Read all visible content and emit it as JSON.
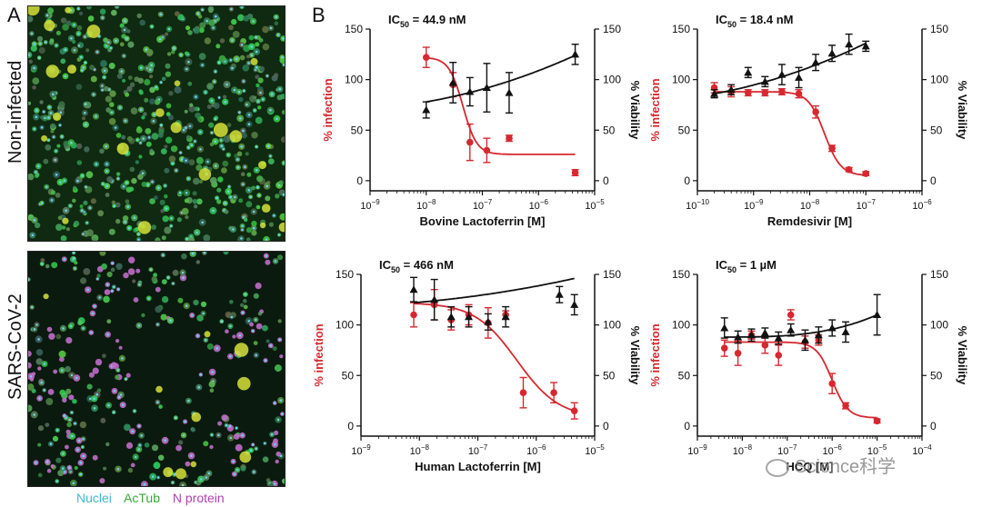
{
  "panels": {
    "a_label": "A",
    "b_label": "B"
  },
  "rows": [
    {
      "label": "Non-infected",
      "style": "noninfected"
    },
    {
      "label": "SARS-CoV-2",
      "style": "infected"
    }
  ],
  "stain_legend": [
    {
      "text": "Nuclei",
      "color": "#3fb8d6"
    },
    {
      "text": "AcTub",
      "color": "#3aa83a"
    },
    {
      "text": "N protein",
      "color": "#b040b0"
    }
  ],
  "watermark": "Science科学",
  "colors": {
    "infection": "#d7282f",
    "viability": "#111111"
  },
  "chart_data": [
    {
      "type": "scatter",
      "title": "IC50 = 44.9 nM",
      "xlabel": "Bovine Lactoferrin [M]",
      "ylabel_left": "% infection",
      "ylabel_right": "% Viability",
      "xlim_exp": [
        -9,
        -5
      ],
      "xtick_exps": [
        -9,
        -8,
        -7,
        -6,
        -5
      ],
      "ylim": [
        -10,
        150
      ],
      "yticks": [
        0,
        50,
        100,
        150
      ],
      "series": [
        {
          "name": "% infection",
          "axis": "left",
          "marker": "circle",
          "x": [
            1e-08,
            3e-08,
            6e-08,
            1.2e-07,
            3e-07,
            4.5e-06
          ],
          "y": [
            122,
            95,
            38,
            30,
            42,
            8
          ],
          "err": [
            10,
            12,
            18,
            12,
            3,
            3
          ],
          "fit": {
            "top": 122,
            "bottom": 26,
            "ic50": 4.49e-08,
            "hill": 3.5
          }
        },
        {
          "name": "% Viability",
          "axis": "right",
          "marker": "triangle",
          "x": [
            1e-08,
            3e-08,
            6e-08,
            1.2e-07,
            3e-07,
            4.5e-06
          ],
          "y": [
            70,
            97,
            88,
            92,
            87,
            125
          ],
          "err": [
            8,
            20,
            14,
            24,
            20,
            10
          ],
          "fit": {
            "type": "log-linear",
            "y0": 78,
            "y1": 124
          }
        }
      ]
    },
    {
      "type": "scatter",
      "title": "IC50 = 18.4 nM",
      "xlabel": "Remdesivir [M]",
      "ylabel_left": "% infection",
      "ylabel_right": "% Viability",
      "xlim_exp": [
        -10,
        -6
      ],
      "xtick_exps": [
        -10,
        -9,
        -8,
        -7,
        -6
      ],
      "ylim": [
        -10,
        150
      ],
      "yticks": [
        0,
        50,
        100,
        150
      ],
      "series": [
        {
          "name": "% infection",
          "axis": "left",
          "marker": "circle",
          "x": [
            2e-10,
            4e-10,
            8e-10,
            1.6e-09,
            3.2e-09,
            6.4e-09,
            1.28e-08,
            2.5e-08,
            5e-08,
            1e-07
          ],
          "y": [
            92,
            88,
            87,
            87,
            88,
            86,
            68,
            32,
            11,
            7
          ],
          "err": [
            5,
            5,
            3,
            3,
            3,
            4,
            6,
            3,
            2,
            2
          ],
          "fit": {
            "top": 88,
            "bottom": 5,
            "ic50": 1.84e-08,
            "hill": 3.0
          }
        },
        {
          "name": "% Viability",
          "axis": "right",
          "marker": "triangle",
          "x": [
            2e-10,
            4e-10,
            8e-10,
            1.6e-09,
            3.2e-09,
            6.4e-09,
            1.28e-08,
            2.5e-08,
            5e-08,
            1e-07
          ],
          "y": [
            86,
            90,
            107,
            98,
            105,
            102,
            117,
            126,
            135,
            133
          ],
          "err": [
            4,
            5,
            5,
            5,
            10,
            10,
            8,
            8,
            10,
            5
          ],
          "fit": {
            "type": "log-linear",
            "y0": 86,
            "y1": 136
          }
        }
      ]
    },
    {
      "type": "scatter",
      "title": "IC50 = 466 nM",
      "xlabel": "Human Lactoferrin [M]",
      "ylabel_left": "% infection",
      "ylabel_right": "% Viability",
      "xlim_exp": [
        -9,
        -5
      ],
      "xtick_exps": [
        -9,
        -8,
        -7,
        -6,
        -5
      ],
      "ylim": [
        -10,
        150
      ],
      "yticks": [
        0,
        50,
        100,
        150
      ],
      "series": [
        {
          "name": "% infection",
          "axis": "left",
          "marker": "circle",
          "x": [
            8e-09,
            1.8e-08,
            3.5e-08,
            7e-08,
            1.5e-07,
            3e-07,
            6e-07,
            2e-06,
            4.5e-06
          ],
          "y": [
            110,
            120,
            105,
            110,
            102,
            110,
            33,
            33,
            15
          ],
          "err": [
            12,
            15,
            10,
            10,
            15,
            4,
            15,
            10,
            8
          ],
          "fit": {
            "top": 122,
            "bottom": 8,
            "ic50": 4.66e-07,
            "hill": 1.2
          }
        },
        {
          "name": "% Viability",
          "axis": "right",
          "marker": "triangle",
          "x": [
            8e-09,
            1.8e-08,
            3.5e-08,
            7e-08,
            1.5e-07,
            3e-07,
            2.5e-06,
            4.5e-06
          ],
          "y": [
            135,
            125,
            108,
            108,
            103,
            108,
            130,
            120
          ],
          "err": [
            12,
            20,
            10,
            10,
            8,
            10,
            8,
            10
          ],
          "fit": {
            "type": "log-linear",
            "y0": 122,
            "y1": 146
          }
        }
      ]
    },
    {
      "type": "scatter",
      "title": "IC50 = 1 µM",
      "xlabel": "HCQ [M]",
      "ylabel_left": "% infection",
      "ylabel_right": "% Viability",
      "xlim_exp": [
        -9,
        -4
      ],
      "xtick_exps": [
        -9,
        -8,
        -7,
        -6,
        -5,
        -4
      ],
      "ylim": [
        -10,
        150
      ],
      "yticks": [
        0,
        50,
        100,
        150
      ],
      "series": [
        {
          "name": "% infection",
          "axis": "left",
          "marker": "circle",
          "x": [
            4e-09,
            8e-09,
            1.6e-08,
            3.2e-08,
            6.4e-08,
            1.2e-07,
            2.5e-07,
            5e-07,
            1e-06,
            2e-06,
            1e-05
          ],
          "y": [
            77,
            72,
            90,
            80,
            70,
            110,
            83,
            85,
            42,
            20,
            5
          ],
          "err": [
            8,
            12,
            4,
            8,
            10,
            5,
            6,
            5,
            10,
            3,
            2
          ],
          "fit": {
            "top": 83,
            "bottom": 8,
            "ic50": 1e-06,
            "hill": 2.5
          }
        },
        {
          "name": "% Viability",
          "axis": "right",
          "marker": "triangle",
          "x": [
            4e-09,
            8e-09,
            1.6e-08,
            3.2e-08,
            6.4e-08,
            1.2e-07,
            2.5e-07,
            5e-07,
            1e-06,
            2e-06,
            1e-05
          ],
          "y": [
            97,
            88,
            90,
            92,
            87,
            95,
            85,
            90,
            97,
            93,
            110
          ],
          "err": [
            10,
            6,
            6,
            5,
            6,
            6,
            10,
            8,
            8,
            10,
            20
          ],
          "fit": {
            "type": "exp",
            "y0": 88,
            "y1": 110
          }
        }
      ]
    }
  ]
}
